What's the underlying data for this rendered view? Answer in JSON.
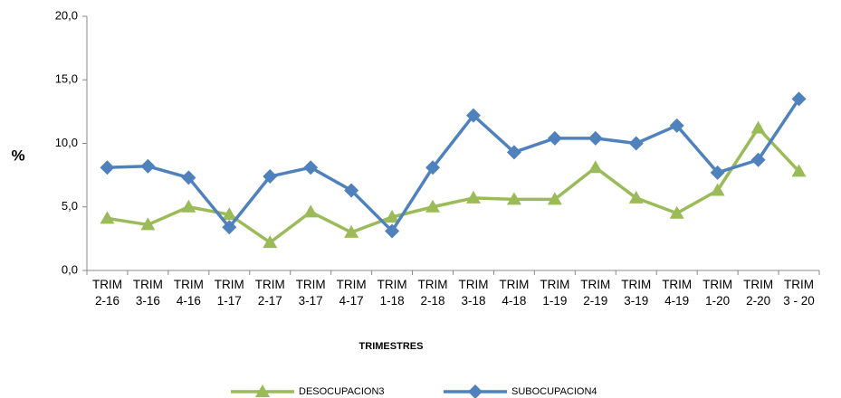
{
  "chart_data": {
    "type": "line",
    "y_label": "%",
    "x_label": "TRIMESTRES",
    "categories": [
      "TRIM\n2-16",
      "TRIM\n3-16",
      "TRIM\n4-16",
      "TRIM\n1-17",
      "TRIM\n2-17",
      "TRIM\n3-17",
      "TRIM\n4-17",
      "TRIM\n1-18",
      "TRIM\n2-18",
      "TRIM\n3-18",
      "TRIM\n4-18",
      "TRIM\n1-19",
      "TRIM\n2-19",
      "TRIM\n3-19",
      "TRIM\n4-19",
      "TRIM\n1-20",
      "TRIM\n2-20",
      "TRIM\n3 - 20"
    ],
    "series": [
      {
        "name": "DESOCUPACION3",
        "color": "#9bbb59",
        "marker": "triangle",
        "values": [
          4.1,
          3.6,
          5.0,
          4.4,
          2.2,
          4.6,
          3.0,
          4.2,
          5.0,
          5.7,
          5.6,
          5.6,
          8.1,
          5.7,
          4.5,
          6.3,
          11.2,
          7.8
        ]
      },
      {
        "name": "SUBOCUPACION4",
        "color": "#4f81bd",
        "marker": "diamond",
        "values": [
          8.1,
          8.2,
          7.3,
          3.4,
          7.4,
          8.1,
          6.3,
          3.1,
          8.1,
          12.2,
          9.3,
          10.4,
          10.4,
          10.0,
          11.4,
          7.7,
          8.7,
          13.5
        ]
      }
    ],
    "ylim": [
      0,
      20
    ],
    "yticks": [
      {
        "value": 0,
        "label": "0,0"
      },
      {
        "value": 5,
        "label": "5,0"
      },
      {
        "value": 10,
        "label": "10,0"
      },
      {
        "value": 15,
        "label": "15,0"
      },
      {
        "value": 20,
        "label": "20,0"
      }
    ],
    "legend": "bottom"
  }
}
